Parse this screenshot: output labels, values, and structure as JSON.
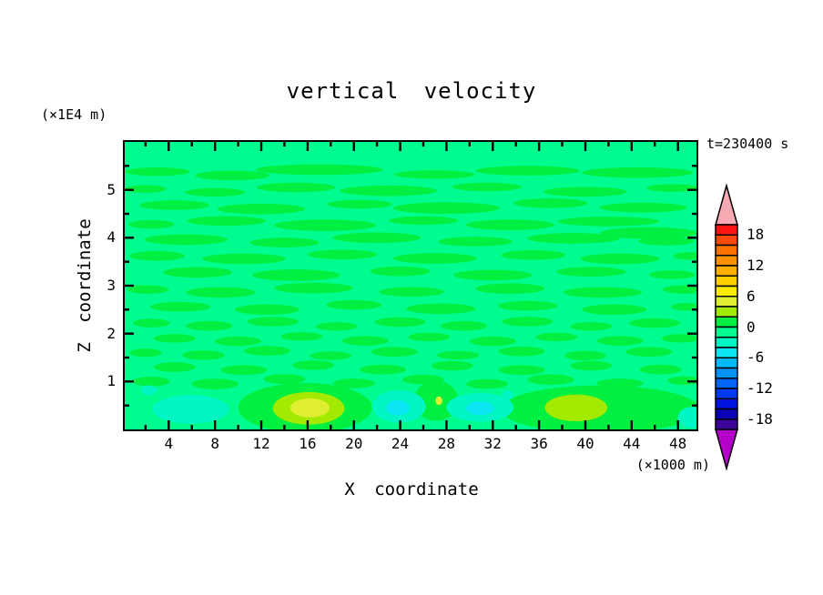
{
  "chart_data": {
    "type": "filled_contour",
    "title": "vertical velocity",
    "time_annotation": "t=230400 s",
    "xlabel": "X coordinate",
    "x_unit": "(×1000 m)",
    "x_tick_labels": [
      4,
      8,
      12,
      16,
      20,
      24,
      28,
      32,
      36,
      40,
      44,
      48
    ],
    "x_minor_tick_step": 2,
    "x_range": [
      0.2,
      49.6
    ],
    "ylabel": "Z coordinate",
    "y_unit": "(×1E4 m)",
    "y_tick_labels": [
      1,
      2,
      3,
      4,
      5
    ],
    "y_minor_tick_step": 0.5,
    "y_range": [
      0,
      6
    ],
    "contour_levels": {
      "min": -20,
      "max": 20,
      "interval": 2
    },
    "colorbar_tick_labels": [
      "18",
      "12",
      "6",
      "0",
      "-6",
      "-12",
      "-18"
    ],
    "palette_top_to_bottom": [
      "#fb1412",
      "#fc4a04",
      "#fe7000",
      "#ff9000",
      "#ffb000",
      "#ffd000",
      "#fcea00",
      "#dfee33",
      "#a4e900",
      "#00ef41",
      "#00fc8e",
      "#00f7c3",
      "#0ce6f2",
      "#00bafc",
      "#0092fa",
      "#0064f8",
      "#0038f4",
      "#0014e0",
      "#0a00b4",
      "#3c0496"
    ],
    "over_color": "#f8aab4",
    "under_color": "#b400c8",
    "background_value_range": [
      -2,
      0
    ],
    "field_regions": [
      {
        "value_range": [
          0,
          2
        ],
        "blobs": [
          [
            3,
            5.38,
            2.8,
            0.09
          ],
          [
            9.5,
            5.3,
            3.2,
            0.1
          ],
          [
            17,
            5.42,
            5.5,
            0.11
          ],
          [
            27,
            5.32,
            3.5,
            0.09
          ],
          [
            35,
            5.4,
            4.5,
            0.1
          ],
          [
            44.5,
            5.36,
            4.8,
            0.11
          ],
          [
            2,
            5.02,
            1.8,
            0.08
          ],
          [
            8,
            4.95,
            2.6,
            0.09
          ],
          [
            15,
            5.05,
            3.4,
            0.1
          ],
          [
            23,
            4.98,
            4.2,
            0.11
          ],
          [
            31.5,
            5.06,
            3,
            0.09
          ],
          [
            40,
            4.96,
            3.6,
            0.1
          ],
          [
            47.5,
            5.04,
            2.2,
            0.08
          ],
          [
            4.5,
            4.68,
            3,
            0.1
          ],
          [
            12,
            4.6,
            3.8,
            0.11
          ],
          [
            20.5,
            4.7,
            2.8,
            0.09
          ],
          [
            28,
            4.62,
            4.6,
            0.12
          ],
          [
            37,
            4.72,
            3.2,
            0.1
          ],
          [
            45,
            4.63,
            3.8,
            0.1
          ],
          [
            2.5,
            4.28,
            2,
            0.09
          ],
          [
            9,
            4.35,
            3.4,
            0.1
          ],
          [
            17.5,
            4.26,
            4.4,
            0.12
          ],
          [
            26,
            4.36,
            3,
            0.09
          ],
          [
            33.5,
            4.27,
            3.8,
            0.11
          ],
          [
            42,
            4.34,
            4.4,
            0.1
          ],
          [
            5.5,
            3.96,
            3.6,
            0.11
          ],
          [
            14,
            3.9,
            3,
            0.1
          ],
          [
            22,
            4.0,
            3.8,
            0.11
          ],
          [
            30.5,
            3.92,
            3.2,
            0.1
          ],
          [
            39,
            3.99,
            4,
            0.11
          ],
          [
            45.5,
            4.1,
            4.2,
            0.12
          ],
          [
            47,
            3.93,
            2.4,
            0.09
          ],
          [
            3,
            3.62,
            2.4,
            0.1
          ],
          [
            10.5,
            3.56,
            3.6,
            0.11
          ],
          [
            19,
            3.65,
            3,
            0.1
          ],
          [
            27,
            3.57,
            3.6,
            0.11
          ],
          [
            35.5,
            3.64,
            2.8,
            0.1
          ],
          [
            43,
            3.56,
            3.4,
            0.11
          ],
          [
            49,
            3.62,
            1.4,
            0.08
          ],
          [
            6.5,
            3.28,
            3,
            0.11
          ],
          [
            15,
            3.22,
            3.8,
            0.12
          ],
          [
            24,
            3.3,
            2.6,
            0.1
          ],
          [
            32,
            3.22,
            3.4,
            0.11
          ],
          [
            40.5,
            3.29,
            3,
            0.1
          ],
          [
            47.5,
            3.23,
            2,
            0.09
          ],
          [
            2.2,
            2.92,
            1.8,
            0.09
          ],
          [
            8.5,
            2.86,
            3,
            0.11
          ],
          [
            16.5,
            2.95,
            3.4,
            0.11
          ],
          [
            25,
            2.87,
            2.8,
            0.1
          ],
          [
            33.5,
            2.94,
            3,
            0.11
          ],
          [
            41.5,
            2.86,
            3.4,
            0.11
          ],
          [
            48.5,
            2.92,
            1.8,
            0.09
          ],
          [
            5,
            2.56,
            2.6,
            0.1
          ],
          [
            12.5,
            2.5,
            2.8,
            0.11
          ],
          [
            20,
            2.6,
            2.4,
            0.1
          ],
          [
            27.5,
            2.52,
            3,
            0.11
          ],
          [
            35,
            2.58,
            2.6,
            0.1
          ],
          [
            42.5,
            2.5,
            2.8,
            0.11
          ],
          [
            48.8,
            2.56,
            1.4,
            0.08
          ],
          [
            2.5,
            2.22,
            1.6,
            0.09
          ],
          [
            7.5,
            2.16,
            2,
            0.1
          ],
          [
            13,
            2.25,
            2.2,
            0.1
          ],
          [
            18.5,
            2.15,
            1.8,
            0.09
          ],
          [
            24,
            2.24,
            2.2,
            0.1
          ],
          [
            29.5,
            2.16,
            2,
            0.1
          ],
          [
            35,
            2.25,
            2.2,
            0.1
          ],
          [
            40.5,
            2.15,
            1.8,
            0.09
          ],
          [
            46,
            2.22,
            2.2,
            0.1
          ],
          [
            4.5,
            1.9,
            1.8,
            0.09
          ],
          [
            10,
            1.84,
            2,
            0.1
          ],
          [
            15.5,
            1.94,
            1.8,
            0.09
          ],
          [
            21,
            1.85,
            2,
            0.1
          ],
          [
            26.5,
            1.93,
            1.8,
            0.09
          ],
          [
            32,
            1.84,
            2,
            0.1
          ],
          [
            37.5,
            1.93,
            1.8,
            0.09
          ],
          [
            43,
            1.85,
            2,
            0.1
          ],
          [
            48.2,
            1.9,
            1.6,
            0.09
          ],
          [
            2,
            1.6,
            1.4,
            0.09
          ],
          [
            7,
            1.55,
            1.8,
            0.1
          ],
          [
            12.5,
            1.64,
            2,
            0.1
          ],
          [
            18,
            1.54,
            1.8,
            0.09
          ],
          [
            23.5,
            1.62,
            2,
            0.1
          ],
          [
            29,
            1.55,
            1.8,
            0.09
          ],
          [
            34.5,
            1.63,
            2,
            0.1
          ],
          [
            40,
            1.54,
            1.8,
            0.1
          ],
          [
            45.5,
            1.62,
            2,
            0.1
          ],
          [
            4.5,
            1.3,
            1.8,
            0.1
          ],
          [
            10.5,
            1.24,
            2,
            0.1
          ],
          [
            16.5,
            1.34,
            1.8,
            0.1
          ],
          [
            22.5,
            1.25,
            2,
            0.1
          ],
          [
            28.5,
            1.33,
            1.8,
            0.1
          ],
          [
            34.5,
            1.24,
            2,
            0.1
          ],
          [
            40.5,
            1.33,
            1.8,
            0.1
          ],
          [
            46.5,
            1.25,
            1.8,
            0.1
          ],
          [
            2.5,
            1.0,
            1.6,
            0.1
          ],
          [
            8,
            0.95,
            2,
            0.11
          ],
          [
            14,
            1.05,
            1.8,
            0.1
          ],
          [
            20,
            0.96,
            1.8,
            0.1
          ],
          [
            26,
            1.04,
            1.8,
            0.1
          ],
          [
            31.5,
            0.95,
            1.8,
            0.1
          ],
          [
            37,
            1.04,
            2,
            0.11
          ],
          [
            43,
            0.96,
            2,
            0.1
          ],
          [
            48.5,
            1.02,
            1.4,
            0.09
          ],
          [
            15.8,
            0.45,
            5.8,
            0.52
          ],
          [
            27.1,
            0.6,
            1.9,
            0.42
          ],
          [
            41.3,
            0.42,
            8.6,
            0.5
          ]
        ]
      },
      {
        "value_range": [
          2,
          4
        ],
        "blobs": [
          [
            16.1,
            0.44,
            3.1,
            0.34
          ],
          [
            39.2,
            0.45,
            2.7,
            0.28
          ]
        ]
      },
      {
        "value_range": [
          4,
          6
        ],
        "blobs": [
          [
            16.2,
            0.45,
            1.7,
            0.2
          ],
          [
            27.35,
            0.6,
            0.3,
            0.09
          ]
        ]
      },
      {
        "value_range": [
          -4,
          -2
        ],
        "blobs": [
          [
            5.9,
            0.42,
            3.3,
            0.3
          ],
          [
            2.3,
            0.82,
            0.7,
            0.1
          ],
          [
            23.9,
            0.48,
            2.3,
            0.34
          ],
          [
            30.9,
            0.46,
            2.9,
            0.3
          ],
          [
            49.2,
            0.25,
            1.2,
            0.22
          ],
          [
            33.3,
            0.72,
            0.5,
            0.1
          ]
        ]
      },
      {
        "value_range": [
          -6,
          -4
        ],
        "blobs": [
          [
            23.8,
            0.45,
            1.0,
            0.16
          ],
          [
            30.9,
            0.44,
            1.2,
            0.14
          ]
        ]
      }
    ]
  }
}
